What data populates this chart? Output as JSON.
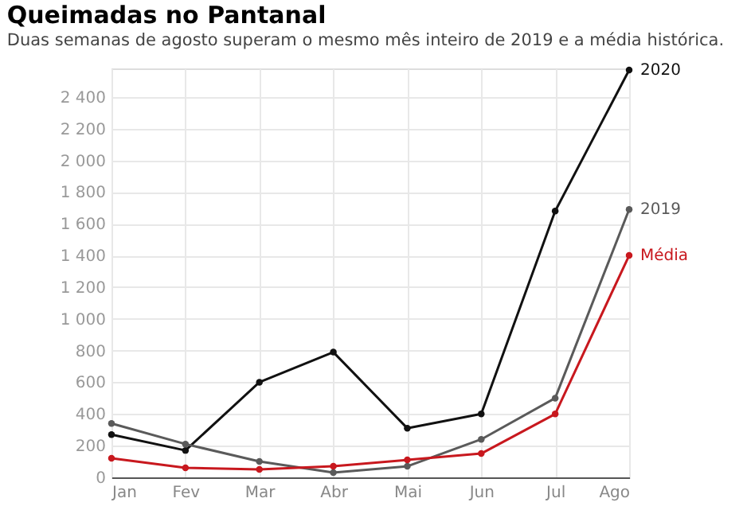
{
  "chart_data": {
    "type": "line",
    "title": "Queimadas no Pantanal",
    "subtitle": "Duas semanas de agosto superam o mesmo mês inteiro de 2019 e a média histórica.",
    "categories": [
      "Jan",
      "Fev",
      "Mar",
      "Abr",
      "Mai",
      "Jun",
      "Jul",
      "Ago"
    ],
    "series": [
      {
        "name": "2020",
        "color": "#111111",
        "values": [
          270,
          170,
          600,
          790,
          310,
          400,
          1680,
          2570
        ]
      },
      {
        "name": "2019",
        "color": "#5a5a5a",
        "values": [
          340,
          210,
          100,
          30,
          70,
          240,
          500,
          1690
        ]
      },
      {
        "name": "Média",
        "color": "#c8181e",
        "values": [
          120,
          60,
          50,
          70,
          110,
          150,
          400,
          1400
        ]
      }
    ],
    "ylim": [
      0,
      2580
    ],
    "yticks": [
      0,
      200,
      400,
      600,
      800,
      {
        "value": 1000,
        "label": "1 000"
      },
      {
        "value": 1200,
        "label": "1 200"
      },
      {
        "value": 1400,
        "label": "1 400"
      },
      {
        "value": 1600,
        "label": "1 600"
      },
      {
        "value": 1800,
        "label": "1 800"
      },
      {
        "value": 2000,
        "label": "2 000"
      },
      {
        "value": 2200,
        "label": "2 200"
      },
      {
        "value": 2400,
        "label": "2 400"
      }
    ],
    "grid": true,
    "marker": "circle",
    "line_style": "solid",
    "legend": false
  }
}
